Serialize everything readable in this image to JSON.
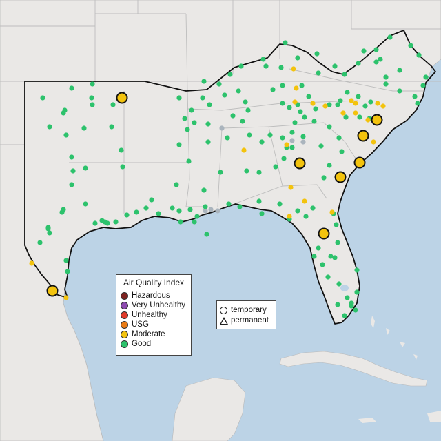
{
  "legend": {
    "title": "Air Quality Index",
    "categories": [
      {
        "label": "Hazardous",
        "color": "#7e2320"
      },
      {
        "label": "Very Unhealthy",
        "color": "#8e4bb0"
      },
      {
        "label": "Unhealthy",
        "color": "#e03a2a"
      },
      {
        "label": "USG",
        "color": "#e87a14"
      },
      {
        "label": "Moderate",
        "color": "#f3c30e"
      },
      {
        "label": "Good",
        "color": "#2dc26c"
      }
    ]
  },
  "monitor_types": {
    "temporary": "temporary",
    "permanent": "permanent"
  },
  "colors": {
    "land": "#eae8e6",
    "water": "#bcd3e6",
    "good": "#2dc26c",
    "moderate": "#f3c30e",
    "grey_monitor": "#aab4bd"
  }
}
